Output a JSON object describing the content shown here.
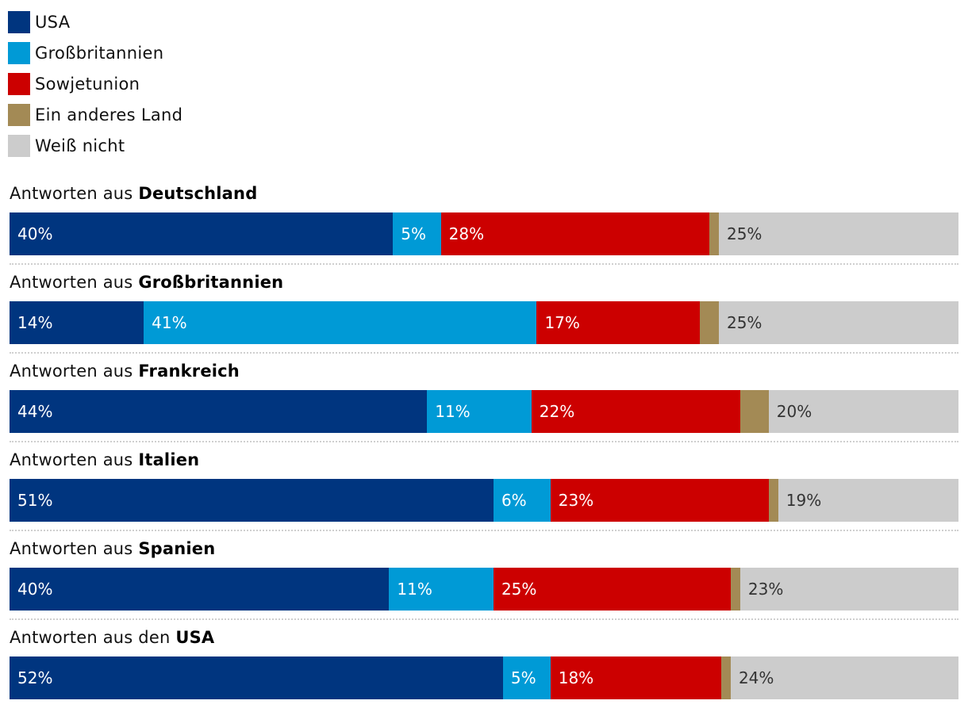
{
  "chart_data": {
    "type": "bar",
    "orientation": "horizontal",
    "stacked": true,
    "unit": "%",
    "series": [
      {
        "name": "USA",
        "color": "#00357f",
        "text_color": "#ffffff"
      },
      {
        "name": "Großbritannien",
        "color": "#009ad6",
        "text_color": "#ffffff"
      },
      {
        "name": "Sowjetunion",
        "color": "#cc0000",
        "text_color": "#ffffff"
      },
      {
        "name": "Ein anderes Land",
        "color": "#a38a55",
        "text_color": "#ffffff"
      },
      {
        "name": "Weiß nicht",
        "color": "#cccccc",
        "text_color": "#333333"
      }
    ],
    "groups": [
      {
        "prefix": "Antworten aus ",
        "country": "Deutschland",
        "values": [
          40,
          5,
          28,
          1,
          25
        ],
        "labels": [
          "40%",
          "5%",
          "28%",
          "",
          "25%"
        ]
      },
      {
        "prefix": "Antworten aus ",
        "country": "Großbritannien",
        "values": [
          14,
          41,
          17,
          2,
          25
        ],
        "labels": [
          "14%",
          "41%",
          "17%",
          "",
          "25%"
        ]
      },
      {
        "prefix": "Antworten aus ",
        "country": "Frankreich",
        "values": [
          44,
          11,
          22,
          3,
          20
        ],
        "labels": [
          "44%",
          "11%",
          "22%",
          "",
          "20%"
        ]
      },
      {
        "prefix": "Antworten aus ",
        "country": "Italien",
        "values": [
          51,
          6,
          23,
          1,
          19
        ],
        "labels": [
          "51%",
          "6%",
          "23%",
          "",
          "19%"
        ]
      },
      {
        "prefix": "Antworten aus ",
        "country": "Spanien",
        "values": [
          40,
          11,
          25,
          1,
          23
        ],
        "labels": [
          "40%",
          "11%",
          "25%",
          "",
          "23%"
        ]
      },
      {
        "prefix": "Antworten aus den ",
        "country": "USA",
        "values": [
          52,
          5,
          18,
          1,
          24
        ],
        "labels": [
          "52%",
          "5%",
          "18%",
          "",
          "24%"
        ]
      }
    ]
  }
}
